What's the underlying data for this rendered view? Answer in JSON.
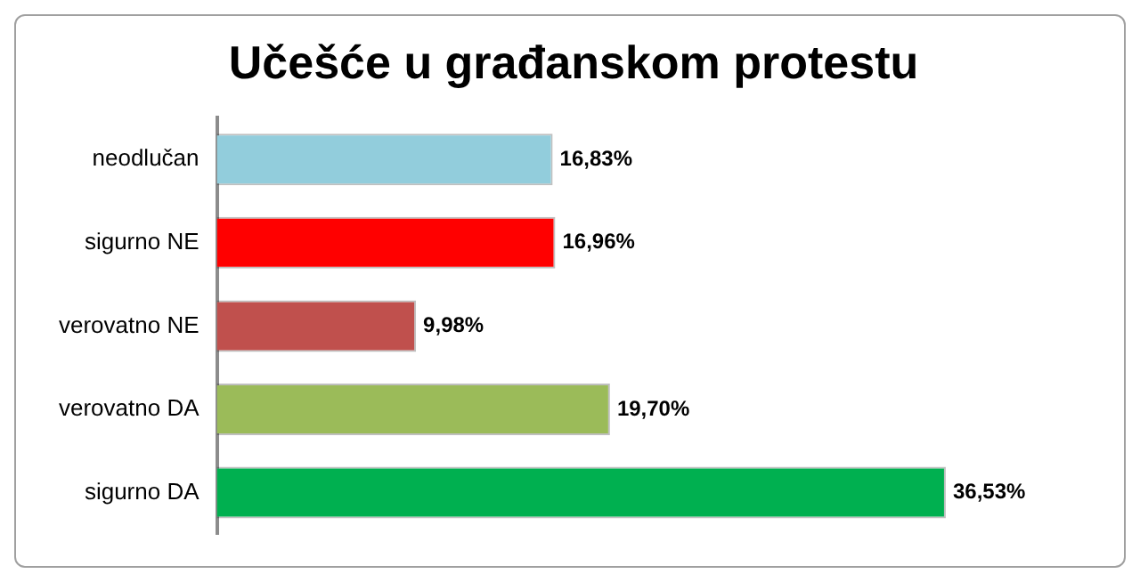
{
  "chart_data": {
    "type": "bar",
    "orientation": "horizontal",
    "title": "Učešće u građanskom protestu",
    "categories": [
      "neodlučan",
      "sigurno NE",
      "verovatno NE",
      "verovatno DA",
      "sigurno DA"
    ],
    "values": [
      16.83,
      16.96,
      9.98,
      19.7,
      36.53
    ],
    "colors": [
      "#92cddc",
      "#ff0000",
      "#c0504d",
      "#9bbb59",
      "#00b050"
    ],
    "value_labels": [
      "16,83%",
      "16,96%",
      "9,98%",
      "19,70%",
      "36,53%"
    ],
    "legend": false
  }
}
